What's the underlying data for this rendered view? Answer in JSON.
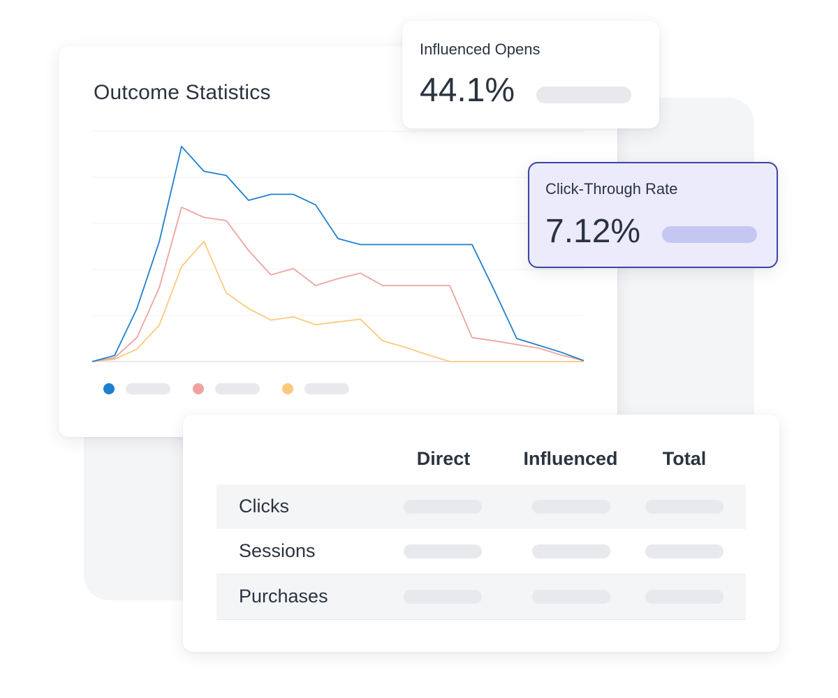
{
  "chart_card": {
    "title": "Outcome Statistics"
  },
  "chart_data": {
    "type": "line",
    "title": "Outcome Statistics",
    "xlabel": "",
    "ylabel": "",
    "x": [
      0,
      1,
      2,
      3,
      4,
      5,
      6,
      7,
      8,
      9,
      10,
      11,
      12,
      13,
      14,
      15,
      16,
      17,
      18,
      19,
      20,
      21,
      22
    ],
    "ylim": [
      0,
      5
    ],
    "grid": true,
    "series": [
      {
        "color": "#1f7fcf",
        "values": [
          0,
          0.13,
          1.15,
          2.6,
          4.67,
          4.13,
          4.04,
          3.5,
          3.63,
          3.63,
          3.4,
          2.67,
          2.54,
          2.54,
          2.54,
          2.54,
          2.54,
          2.54,
          1.54,
          0.5,
          0.35,
          0.2,
          0.02
        ]
      },
      {
        "color": "#eea3a0",
        "values": [
          0,
          0.08,
          0.52,
          1.6,
          3.35,
          3.13,
          3.06,
          2.41,
          1.88,
          2.02,
          1.65,
          1.8,
          1.92,
          1.65,
          1.65,
          1.65,
          1.65,
          0.52,
          0.45,
          0.37,
          0.29,
          0.14,
          0.02
        ]
      },
      {
        "color": "#fbc97e",
        "values": [
          0,
          0.05,
          0.27,
          0.79,
          2.06,
          2.61,
          1.49,
          1.15,
          0.9,
          0.97,
          0.8,
          0.86,
          0.92,
          0.45,
          0.31,
          0.15,
          0,
          0,
          0,
          0,
          0,
          0,
          0
        ]
      }
    ]
  },
  "legend": [
    {
      "color": "#1f7fcf"
    },
    {
      "color": "#eea3a0"
    },
    {
      "color": "#fbc97e"
    }
  ],
  "influenced_opens": {
    "label": "Influenced Opens",
    "value": "44.1%"
  },
  "click_through": {
    "label": "Click-Through Rate",
    "value": "7.12%"
  },
  "table": {
    "columns": [
      "Direct",
      "Influenced",
      "Total"
    ],
    "rows": [
      "Clicks",
      "Sessions",
      "Purchases"
    ]
  }
}
